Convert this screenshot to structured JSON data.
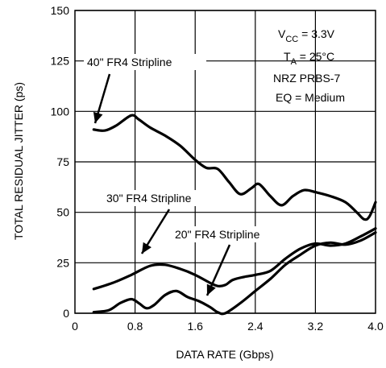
{
  "chart_data": {
    "type": "line",
    "xlabel": "DATA RATE (Gbps)",
    "ylabel": "TOTAL RESIDUAL JITTER (ps)",
    "xlim": [
      0,
      4.0
    ],
    "ylim": [
      0,
      150
    ],
    "x_ticks": [
      "0",
      "0.8",
      "1.6",
      "2.4",
      "3.2",
      "4.0"
    ],
    "x_tick_values": [
      0,
      0.8,
      1.6,
      2.4,
      3.2,
      4.0
    ],
    "y_ticks": [
      "0",
      "25",
      "50",
      "75",
      "100",
      "125",
      "150"
    ],
    "y_tick_values": [
      0,
      25,
      50,
      75,
      100,
      125,
      150
    ],
    "grid": true,
    "conditions": {
      "vcc_main": "V",
      "vcc_sub": "CC",
      "vcc_value": " = 3.3V",
      "ta_main": "T",
      "ta_sub": "A",
      "ta_value": " = 25°C",
      "pattern": "NRZ PRBS-7",
      "eq": "EQ = Medium"
    },
    "series": [
      {
        "name": "40\" FR4 Stripline",
        "points": [
          [
            0.25,
            91
          ],
          [
            0.4,
            90.5
          ],
          [
            0.55,
            93
          ],
          [
            0.75,
            98
          ],
          [
            0.85,
            96
          ],
          [
            1.0,
            92
          ],
          [
            1.2,
            88
          ],
          [
            1.4,
            83
          ],
          [
            1.6,
            76
          ],
          [
            1.75,
            72
          ],
          [
            1.9,
            71.5
          ],
          [
            2.05,
            65
          ],
          [
            2.2,
            59
          ],
          [
            2.35,
            62
          ],
          [
            2.45,
            64
          ],
          [
            2.6,
            58
          ],
          [
            2.75,
            53.5
          ],
          [
            2.9,
            58
          ],
          [
            3.05,
            61
          ],
          [
            3.2,
            60
          ],
          [
            3.4,
            58
          ],
          [
            3.6,
            55
          ],
          [
            3.75,
            50
          ],
          [
            3.85,
            46.5
          ],
          [
            3.92,
            48
          ],
          [
            4.0,
            55
          ]
        ]
      },
      {
        "name": "30\" FR4 Stripline",
        "points": [
          [
            0.25,
            12
          ],
          [
            0.5,
            15
          ],
          [
            0.75,
            19
          ],
          [
            1.0,
            23.5
          ],
          [
            1.2,
            24
          ],
          [
            1.4,
            22
          ],
          [
            1.6,
            19
          ],
          [
            1.8,
            15
          ],
          [
            1.9,
            13.5
          ],
          [
            2.0,
            14
          ],
          [
            2.1,
            16.5
          ],
          [
            2.25,
            18
          ],
          [
            2.4,
            19
          ],
          [
            2.6,
            21
          ],
          [
            2.8,
            27
          ],
          [
            3.0,
            32
          ],
          [
            3.2,
            34.5
          ],
          [
            3.4,
            33.5
          ],
          [
            3.6,
            34.5
          ],
          [
            3.8,
            38
          ],
          [
            4.0,
            42
          ]
        ]
      },
      {
        "name": "20\" FR4 Stripline",
        "points": [
          [
            0.25,
            0.5
          ],
          [
            0.45,
            1.5
          ],
          [
            0.6,
            5
          ],
          [
            0.75,
            7
          ],
          [
            0.85,
            5
          ],
          [
            0.95,
            2.5
          ],
          [
            1.05,
            4
          ],
          [
            1.2,
            9
          ],
          [
            1.35,
            11
          ],
          [
            1.5,
            8
          ],
          [
            1.65,
            6
          ],
          [
            1.8,
            3
          ],
          [
            1.9,
            0.5
          ],
          [
            2.0,
            0
          ],
          [
            2.2,
            5
          ],
          [
            2.4,
            11
          ],
          [
            2.6,
            17
          ],
          [
            2.8,
            24
          ],
          [
            3.0,
            29
          ],
          [
            3.2,
            33.5
          ],
          [
            3.4,
            35
          ],
          [
            3.6,
            34
          ],
          [
            3.8,
            36
          ],
          [
            4.0,
            40
          ]
        ]
      }
    ],
    "annotations": [
      {
        "text": "40\" FR4 Stripline",
        "series": 0
      },
      {
        "text": "30\" FR4 Stripline",
        "series": 1
      },
      {
        "text": "20\" FR4 Stripline",
        "series": 2
      }
    ]
  }
}
